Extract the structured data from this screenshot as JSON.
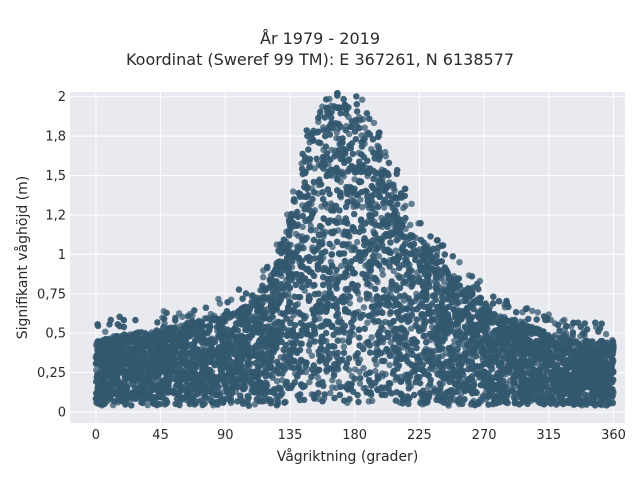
{
  "chart_data": {
    "type": "scatter",
    "title": "År 1979 - 2019",
    "subtitle": "Koordinat (Sweref 99 TM): E 367261, N 6138577",
    "xlabel": "Vågriktning (grader)",
    "ylabel": "Signifikant våghöjd (m)",
    "xlim": [
      -18,
      368
    ],
    "ylim": [
      -0.07,
      2.03
    ],
    "x_ticks": [
      0,
      45,
      90,
      135,
      180,
      225,
      270,
      315,
      360
    ],
    "x_tick_labels": [
      "0",
      "45",
      "90",
      "135",
      "180",
      "225",
      "270",
      "315",
      "360"
    ],
    "y_ticks": [
      0,
      0.25,
      0.5,
      0.75,
      1,
      1.25,
      1.5,
      1.75,
      2
    ],
    "y_tick_labels": [
      "0",
      "0,25",
      "0,5",
      "0,75",
      "1",
      "1,2",
      "1,5",
      "1,8",
      "2"
    ],
    "grid": true,
    "marker_color": "#33586f",
    "background_color": "#e9e9f0",
    "envelope": {
      "x": [
        0,
        20,
        45,
        70,
        90,
        105,
        120,
        135,
        150,
        165,
        175,
        185,
        200,
        215,
        225,
        240,
        255,
        270,
        285,
        300,
        315,
        330,
        345,
        360
      ],
      "y_max": [
        0.45,
        0.5,
        0.52,
        0.58,
        0.62,
        0.68,
        0.82,
        1.25,
        1.8,
        1.95,
        1.95,
        1.88,
        1.62,
        1.3,
        1.12,
        0.95,
        0.82,
        0.7,
        0.6,
        0.55,
        0.5,
        0.46,
        0.45,
        0.45
      ],
      "y_min": [
        0.04,
        0.04,
        0.04,
        0.04,
        0.04,
        0.04,
        0.04,
        0.04,
        0.05,
        0.05,
        0.05,
        0.05,
        0.05,
        0.05,
        0.04,
        0.04,
        0.04,
        0.04,
        0.04,
        0.04,
        0.04,
        0.04,
        0.04,
        0.04
      ]
    }
  }
}
